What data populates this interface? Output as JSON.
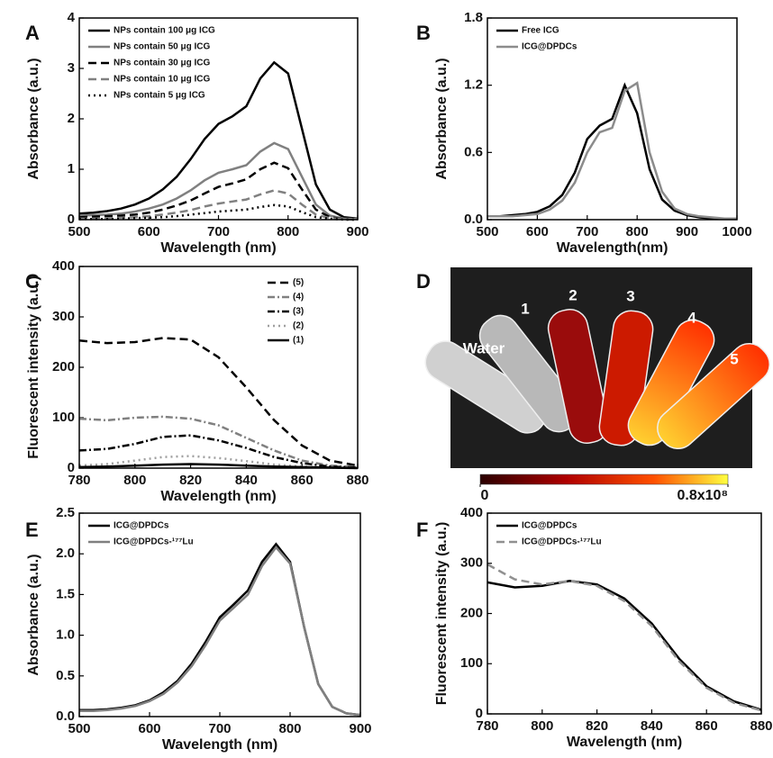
{
  "chart_data": [
    {
      "panel": "A",
      "type": "line",
      "xlabel": "Wavelength (nm)",
      "ylabel": "Absorbance (a.u.)",
      "xlim": [
        500,
        900
      ],
      "ylim": [
        0,
        4
      ],
      "xticks": [
        500,
        600,
        700,
        800,
        900
      ],
      "yticks": [
        0,
        1,
        2,
        3,
        4
      ],
      "legend": "upper left",
      "x": [
        500,
        520,
        540,
        560,
        580,
        600,
        620,
        640,
        660,
        680,
        700,
        720,
        740,
        760,
        780,
        800,
        820,
        840,
        860,
        880,
        900
      ],
      "series": [
        {
          "name": "NPs contain 100 μg ICG",
          "color": "#000000",
          "dash": "solid",
          "values": [
            0.12,
            0.14,
            0.17,
            0.22,
            0.3,
            0.42,
            0.6,
            0.85,
            1.2,
            1.6,
            1.9,
            2.05,
            2.25,
            2.8,
            3.12,
            2.9,
            1.8,
            0.7,
            0.2,
            0.05,
            0.02
          ]
        },
        {
          "name": "NPs contain 50 μg ICG",
          "color": "#808080",
          "dash": "solid",
          "values": [
            0.08,
            0.09,
            0.1,
            0.12,
            0.16,
            0.22,
            0.3,
            0.42,
            0.58,
            0.78,
            0.93,
            1.0,
            1.08,
            1.35,
            1.52,
            1.4,
            0.85,
            0.3,
            0.08,
            0.02,
            0.01
          ]
        },
        {
          "name": "NPs contain 30 μg ICG",
          "color": "#000000",
          "dash": "dash",
          "values": [
            0.05,
            0.06,
            0.07,
            0.08,
            0.1,
            0.14,
            0.2,
            0.28,
            0.38,
            0.52,
            0.65,
            0.72,
            0.8,
            1.0,
            1.13,
            1.02,
            0.6,
            0.2,
            0.05,
            0.01,
            0
          ]
        },
        {
          "name": "NPs contain 10 μg ICG",
          "color": "#808080",
          "dash": "dash",
          "values": [
            0.02,
            0.02,
            0.03,
            0.04,
            0.05,
            0.07,
            0.1,
            0.14,
            0.19,
            0.26,
            0.32,
            0.36,
            0.4,
            0.5,
            0.58,
            0.52,
            0.3,
            0.1,
            0.03,
            0.01,
            0
          ]
        },
        {
          "name": "NPs contain 5 μg ICG",
          "color": "#000000",
          "dash": "dot",
          "values": [
            0.01,
            0.01,
            0.01,
            0.02,
            0.03,
            0.04,
            0.05,
            0.07,
            0.1,
            0.13,
            0.16,
            0.18,
            0.2,
            0.25,
            0.29,
            0.26,
            0.15,
            0.05,
            0.02,
            0,
            0
          ]
        }
      ]
    },
    {
      "panel": "B",
      "type": "line",
      "xlabel": "Wavelength(nm)",
      "ylabel": "Absorbance (a.u.)",
      "xlim": [
        500,
        1000
      ],
      "ylim": [
        0,
        1.8
      ],
      "xticks": [
        500,
        600,
        700,
        800,
        900,
        1000
      ],
      "yticks": [
        {
          "value": 0,
          "label": "0.0"
        },
        0.6,
        1.2,
        1.8
      ],
      "legend": "upper left",
      "x": [
        500,
        525,
        550,
        575,
        600,
        625,
        650,
        675,
        700,
        725,
        750,
        775,
        800,
        825,
        850,
        875,
        900,
        925,
        950,
        975,
        1000
      ],
      "series": [
        {
          "name": "Free ICG",
          "color": "#000000",
          "dash": "solid",
          "values": [
            0.03,
            0.03,
            0.04,
            0.05,
            0.07,
            0.12,
            0.22,
            0.42,
            0.72,
            0.84,
            0.9,
            1.2,
            0.95,
            0.45,
            0.18,
            0.08,
            0.04,
            0.02,
            0.01,
            0.01,
            0.01
          ]
        },
        {
          "name": "ICG@DPDCs",
          "color": "#8c8c8c",
          "dash": "solid",
          "values": [
            0.03,
            0.03,
            0.03,
            0.04,
            0.05,
            0.09,
            0.17,
            0.33,
            0.6,
            0.78,
            0.82,
            1.15,
            1.22,
            0.6,
            0.25,
            0.1,
            0.05,
            0.03,
            0.02,
            0.01,
            0.01
          ]
        }
      ]
    },
    {
      "panel": "C",
      "type": "line",
      "xlabel": "Wavelength (nm)",
      "ylabel": "Fluorescent intensity (a.u.)",
      "xlim": [
        780,
        880
      ],
      "ylim": [
        0,
        400
      ],
      "xticks": [
        780,
        800,
        820,
        840,
        860,
        880
      ],
      "yticks": [
        0,
        100,
        200,
        300,
        400
      ],
      "legend": "upper right",
      "x": [
        780,
        790,
        800,
        810,
        820,
        830,
        840,
        850,
        860,
        870,
        880
      ],
      "series": [
        {
          "name": "(5)",
          "color": "#000000",
          "dash": "dash",
          "values": [
            253,
            248,
            250,
            258,
            255,
            220,
            160,
            95,
            45,
            15,
            5
          ]
        },
        {
          "name": "(4)",
          "color": "#808080",
          "dash": "dashdot",
          "values": [
            98,
            95,
            100,
            102,
            98,
            85,
            60,
            35,
            15,
            5,
            2
          ]
        },
        {
          "name": "(3)",
          "color": "#000000",
          "dash": "dashdot",
          "values": [
            35,
            38,
            48,
            62,
            65,
            55,
            40,
            22,
            10,
            3,
            1
          ]
        },
        {
          "name": "(2)",
          "color": "#a0a0a0",
          "dash": "dot",
          "values": [
            5,
            8,
            15,
            22,
            24,
            20,
            14,
            7,
            3,
            1,
            0
          ]
        },
        {
          "name": "(1)",
          "color": "#000000",
          "dash": "solid",
          "values": [
            2,
            3,
            5,
            7,
            8,
            7,
            5,
            3,
            2,
            1,
            0
          ]
        }
      ]
    },
    {
      "panel": "D",
      "type": "image",
      "labels": [
        "Water",
        "1",
        "2",
        "3",
        "4",
        "5"
      ],
      "colorbar": {
        "clim": [
          0,
          80000000
        ],
        "ticks": [
          0,
          {
            "value": 80000000,
            "label": "0.8x10⁸"
          }
        ]
      }
    },
    {
      "panel": "E",
      "type": "line",
      "xlabel": "Wavelength (nm)",
      "ylabel": "Absorbance (a.u.)",
      "xlim": [
        500,
        900
      ],
      "ylim": [
        0,
        2.5
      ],
      "xticks": [
        500,
        600,
        700,
        800,
        900
      ],
      "yticks": [
        {
          "value": 0,
          "label": "0.0"
        },
        0.5,
        {
          "value": 1,
          "label": "1.0"
        },
        1.5,
        {
          "value": 2,
          "label": "2.0"
        },
        2.5
      ],
      "legend": "upper left",
      "x": [
        500,
        520,
        540,
        560,
        580,
        600,
        620,
        640,
        660,
        680,
        700,
        720,
        740,
        760,
        780,
        800,
        820,
        840,
        860,
        880,
        900
      ],
      "series": [
        {
          "name": "ICG@DPDCs",
          "color": "#000000",
          "dash": "solid",
          "values": [
            0.08,
            0.08,
            0.09,
            0.11,
            0.14,
            0.2,
            0.3,
            0.44,
            0.65,
            0.92,
            1.22,
            1.38,
            1.55,
            1.9,
            2.12,
            1.9,
            1.1,
            0.4,
            0.12,
            0.04,
            0.02
          ]
        },
        {
          "name": "ICG@DPDCs-¹⁷⁷Lu",
          "color": "#808080",
          "dash": "solid",
          "values": [
            0.07,
            0.07,
            0.08,
            0.1,
            0.13,
            0.19,
            0.28,
            0.42,
            0.62,
            0.88,
            1.18,
            1.34,
            1.5,
            1.85,
            2.08,
            1.88,
            1.1,
            0.4,
            0.12,
            0.04,
            0.02
          ]
        }
      ]
    },
    {
      "panel": "F",
      "type": "line",
      "xlabel": "Wavelength (nm)",
      "ylabel": "Fluorescent intensity (a.u.)",
      "xlim": [
        780,
        880
      ],
      "ylim": [
        0,
        400
      ],
      "xticks": [
        780,
        800,
        820,
        840,
        860,
        880
      ],
      "yticks": [
        0,
        100,
        200,
        300,
        400
      ],
      "legend": "upper left",
      "x": [
        780,
        790,
        800,
        810,
        820,
        830,
        840,
        850,
        860,
        870,
        880
      ],
      "series": [
        {
          "name": "ICG@DPDCs",
          "color": "#000000",
          "dash": "solid",
          "values": [
            262,
            252,
            255,
            265,
            258,
            230,
            180,
            110,
            55,
            25,
            8
          ]
        },
        {
          "name": "ICG@DPDCs-¹⁷⁷Lu",
          "color": "#909090",
          "dash": "dash",
          "values": [
            298,
            268,
            258,
            265,
            255,
            225,
            175,
            105,
            52,
            22,
            7
          ]
        }
      ]
    }
  ]
}
